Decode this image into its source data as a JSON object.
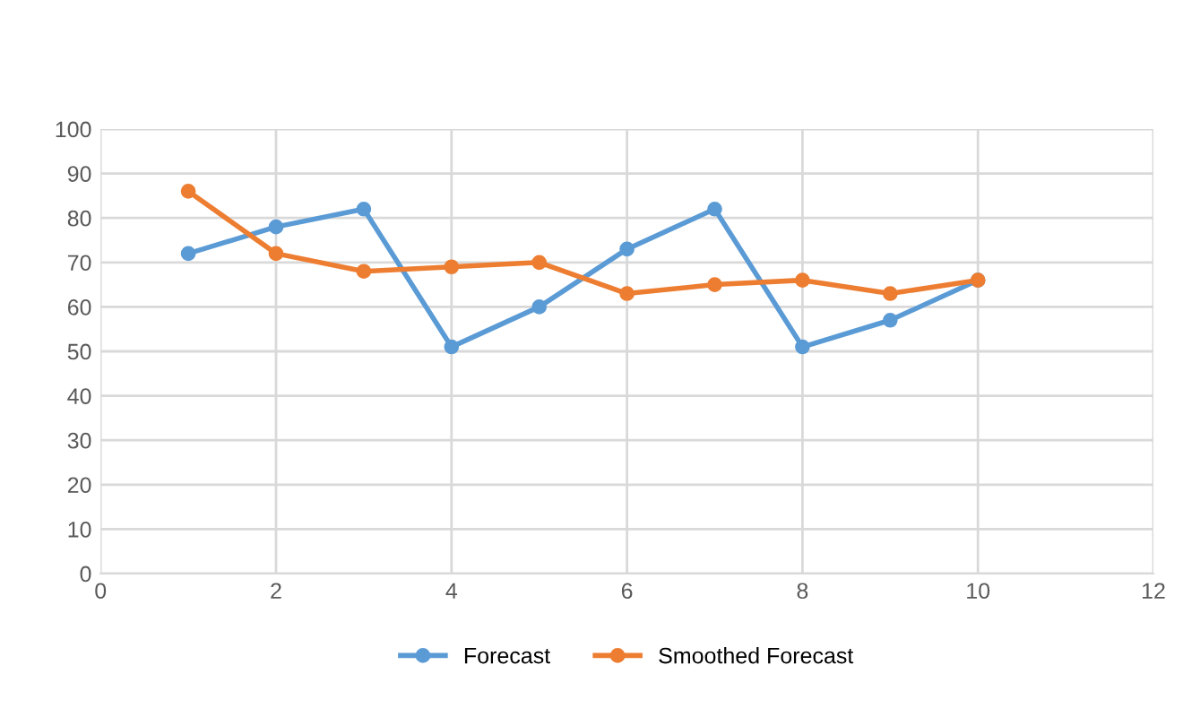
{
  "chart_data": {
    "type": "line",
    "x": [
      1,
      2,
      3,
      4,
      5,
      6,
      7,
      8,
      9,
      10
    ],
    "series": [
      {
        "name": "Forecast",
        "color": "#5b9bd5",
        "values": [
          72,
          78,
          82,
          51,
          60,
          73,
          82,
          51,
          57,
          66
        ]
      },
      {
        "name": "Smoothed Forecast",
        "color": "#ed7d31",
        "values": [
          86,
          72,
          68,
          69,
          70,
          63,
          65,
          66,
          63,
          66
        ]
      }
    ],
    "xlim": [
      0,
      12
    ],
    "xticks": [
      0,
      2,
      4,
      6,
      8,
      10,
      12
    ],
    "ylim": [
      0,
      100
    ],
    "yticks": [
      0,
      10,
      20,
      30,
      40,
      50,
      60,
      70,
      80,
      90,
      100
    ],
    "grid": true,
    "legend": "bottom",
    "marker": "circle",
    "line_style": "solid"
  }
}
